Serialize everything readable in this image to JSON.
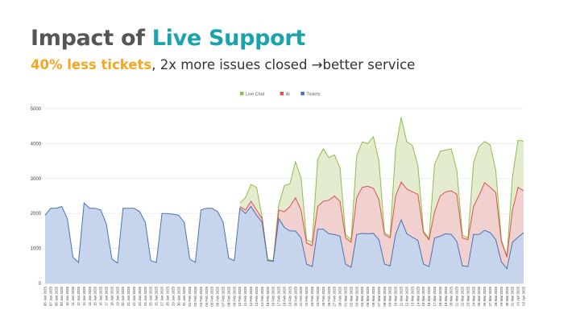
{
  "slide": {
    "title_part1": "Impact of ",
    "title_part2": "Live Support",
    "subtitle_highlight": "40% less tickets",
    "subtitle_rest": ", 2x more issues closed →better service",
    "colors": {
      "title_dark": "#555555",
      "title_accent": "#1aa3ad",
      "subtitle_highlight": "#f5a623"
    }
  },
  "chart_data": {
    "type": "area",
    "title": "",
    "xlabel": "",
    "ylabel": "",
    "ylim": [
      0,
      5000
    ],
    "yticks": [
      0,
      1000,
      2000,
      3000,
      4000,
      5000
    ],
    "grid": true,
    "legend_position": "top-center",
    "x": [
      "06 Jan 2025",
      "07 Jan 2025",
      "08 Jan 2025",
      "09 Jan 2025",
      "10 Jan 2025",
      "11 Jan 2025",
      "12 Jan 2025",
      "13 Jan 2025",
      "14 Jan 2025",
      "15 Jan 2025",
      "16 Jan 2025",
      "17 Jan 2025",
      "18 Jan 2025",
      "19 Jan 2025",
      "20 Jan 2025",
      "21 Jan 2025",
      "22 Jan 2025",
      "23 Jan 2025",
      "24 Jan 2025",
      "25 Jan 2025",
      "26 Jan 2025",
      "27 Jan 2025",
      "28 Jan 2025",
      "29 Jan 2025",
      "30 Jan 2025",
      "31 Jan 2025",
      "01 Feb 2025",
      "02 Feb 2025",
      "03 Feb 2025",
      "04 Feb 2025",
      "05 Feb 2025",
      "06 Feb 2025",
      "07 Feb 2025",
      "08 Feb 2025",
      "09 Feb 2025",
      "10 Feb 2025",
      "11 Feb 2025",
      "12 Feb 2025",
      "13 Feb 2025",
      "14 Feb 2025",
      "15 Feb 2025",
      "16 Feb 2025",
      "17 Feb 2025",
      "18 Feb 2025",
      "19 Feb 2025",
      "20 Feb 2025",
      "21 Feb 2025",
      "22 Feb 2025",
      "23 Feb 2025",
      "24 Feb 2025",
      "25 Feb 2025",
      "26 Feb 2025",
      "27 Feb 2025",
      "28 Feb 2025",
      "01 Mar 2025",
      "02 Mar 2025",
      "03 Mar 2025",
      "04 Mar 2025",
      "05 Mar 2025",
      "06 Mar 2025",
      "07 Mar 2025",
      "08 Mar 2025",
      "09 Mar 2025",
      "10 Mar 2025",
      "11 Mar 2025",
      "12 Mar 2025",
      "13 Mar 2025",
      "14 Mar 2025",
      "15 Mar 2025",
      "16 Mar 2025",
      "17 Mar 2025",
      "18 Mar 2025",
      "19 Mar 2025",
      "20 Mar 2025",
      "21 Mar 2025",
      "22 Mar 2025",
      "23 Mar 2025",
      "24 Mar 2025",
      "25 Mar 2025",
      "26 Mar 2025",
      "27 Mar 2025",
      "28 Mar 2025",
      "29 Mar 2025",
      "30 Mar 2025",
      "31 Mar 2025",
      "01 Apr 2025",
      "02 Apr 2025"
    ],
    "series": [
      {
        "name": "Live Chat",
        "color": "#8fbe4c",
        "fill": "#e3eccf",
        "values": [
          null,
          null,
          null,
          null,
          null,
          null,
          null,
          null,
          null,
          null,
          null,
          null,
          null,
          null,
          null,
          null,
          null,
          null,
          null,
          null,
          null,
          null,
          null,
          null,
          null,
          null,
          null,
          null,
          null,
          null,
          null,
          null,
          null,
          null,
          null,
          2300,
          2450,
          2830,
          2750,
          1900,
          680,
          650,
          2250,
          2800,
          2850,
          3480,
          3020,
          1250,
          1180,
          3550,
          3850,
          3600,
          3680,
          3300,
          1400,
          1250,
          3650,
          4050,
          4000,
          4200,
          3500,
          1450,
          1350,
          3850,
          4750,
          4050,
          3950,
          3380,
          1500,
          1280,
          3400,
          3780,
          3820,
          3850,
          3230,
          1380,
          1300,
          3450,
          3920,
          4060,
          3960,
          3230,
          1250,
          770,
          3050,
          4100,
          4070
        ]
      },
      {
        "name": "AI",
        "color": "#d9534f",
        "fill": "#f1d1cf",
        "values": [
          null,
          null,
          null,
          null,
          null,
          null,
          null,
          null,
          null,
          null,
          null,
          null,
          null,
          null,
          null,
          null,
          null,
          null,
          null,
          null,
          null,
          null,
          null,
          null,
          null,
          null,
          null,
          null,
          null,
          null,
          null,
          null,
          null,
          null,
          null,
          2200,
          2100,
          2350,
          2100,
          1850,
          660,
          630,
          2100,
          2050,
          2200,
          2450,
          2100,
          1150,
          1080,
          2200,
          2350,
          2380,
          2500,
          2350,
          1300,
          1180,
          2450,
          2750,
          2780,
          2720,
          2400,
          1400,
          1300,
          2500,
          2900,
          2700,
          2620,
          2550,
          1450,
          1250,
          2050,
          2500,
          2620,
          2650,
          2550,
          1300,
          1250,
          2200,
          2520,
          2880,
          2750,
          2600,
          1200,
          750,
          2100,
          2750,
          2650
        ]
      },
      {
        "name": "Tickets",
        "color": "#4a72b8",
        "fill": "#c6d4ec",
        "values": [
          1950,
          2150,
          2150,
          2200,
          1850,
          750,
          600,
          2300,
          2150,
          2150,
          2100,
          1700,
          700,
          580,
          2150,
          2150,
          2150,
          2050,
          1750,
          650,
          600,
          2000,
          2000,
          1980,
          1950,
          1750,
          700,
          600,
          2100,
          2150,
          2150,
          2050,
          1750,
          720,
          650,
          2150,
          2000,
          2200,
          1950,
          1750,
          650,
          630,
          1850,
          1600,
          1500,
          1500,
          1300,
          550,
          480,
          1550,
          1550,
          1420,
          1400,
          1350,
          550,
          460,
          1400,
          1430,
          1420,
          1430,
          1250,
          550,
          500,
          1400,
          1820,
          1420,
          1320,
          1230,
          550,
          480,
          1300,
          1350,
          1420,
          1400,
          1200,
          500,
          480,
          1400,
          1400,
          1520,
          1450,
          1250,
          620,
          420,
          1180,
          1320,
          1450
        ]
      }
    ]
  }
}
